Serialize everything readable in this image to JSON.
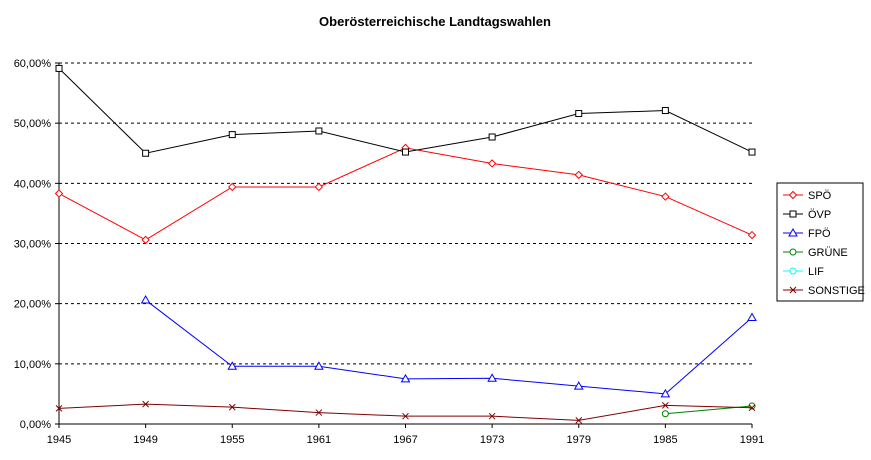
{
  "chart_data": {
    "type": "line",
    "title": "Oberösterreichische Landtagswahlen",
    "xlabel": "",
    "ylabel": "",
    "categories": [
      "1945",
      "1949",
      "1955",
      "1961",
      "1967",
      "1973",
      "1979",
      "1985",
      "1991"
    ],
    "ylim": [
      0,
      60
    ],
    "yticks": [
      "0,00%",
      "10,00%",
      "20,00%",
      "30,00%",
      "40,00%",
      "50,00%",
      "60,00%"
    ],
    "grid": "horizontal dashed",
    "legend_position": "right",
    "series": [
      {
        "name": "SPÖ",
        "color": "#ff0000",
        "marker": "diamond",
        "values": [
          38.3,
          30.6,
          39.4,
          39.4,
          45.9,
          43.3,
          41.4,
          37.8,
          31.4
        ]
      },
      {
        "name": "ÖVP",
        "color": "#000000",
        "marker": "square",
        "values": [
          59.1,
          45.0,
          48.1,
          48.7,
          45.2,
          47.7,
          51.6,
          52.1,
          45.2
        ]
      },
      {
        "name": "FPÖ",
        "color": "#0000ff",
        "marker": "triangle",
        "values": [
          null,
          20.6,
          9.6,
          9.6,
          7.5,
          7.6,
          6.3,
          5.0,
          17.7
        ]
      },
      {
        "name": "GRÜNE",
        "color": "#008000",
        "marker": "circle",
        "values": [
          null,
          null,
          null,
          null,
          null,
          null,
          null,
          1.7,
          3.0
        ]
      },
      {
        "name": "LIF",
        "color": "#00ffff",
        "marker": "circle",
        "values": [
          null,
          null,
          null,
          null,
          null,
          null,
          null,
          null,
          null
        ]
      },
      {
        "name": "SONSTIGE",
        "color": "#800000",
        "marker": "x",
        "values": [
          2.6,
          3.3,
          2.8,
          1.9,
          1.3,
          1.3,
          0.6,
          3.1,
          2.7
        ]
      }
    ]
  }
}
